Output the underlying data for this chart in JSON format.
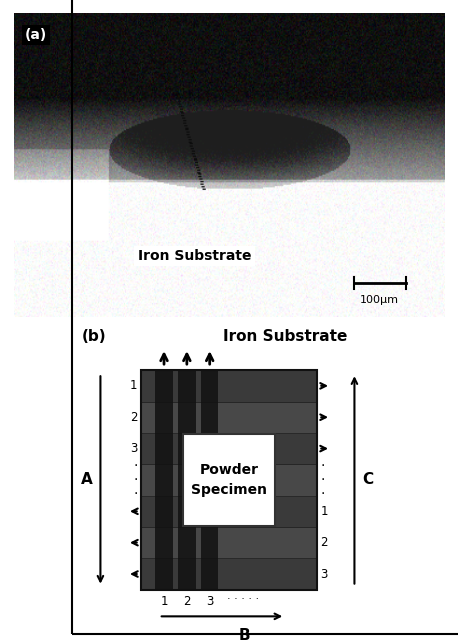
{
  "fig_width": 4.58,
  "fig_height": 6.4,
  "dpi": 100,
  "panel_a_label": "(a)",
  "panel_b_label": "(b)",
  "iron_substrate_label_a": "Iron Substrate",
  "scale_bar_label": "100μm",
  "iron_substrate_label_b": "Iron Substrate",
  "powder_specimen_label": "Powder\nSpecimen",
  "label_A": "A",
  "label_B": "B",
  "label_C": "C",
  "bg_color": "#ffffff",
  "row_numbers_left": [
    "1",
    "2",
    "3"
  ],
  "row_numbers_right": [
    "3",
    "2",
    "1"
  ],
  "col_numbers": [
    "1",
    "2",
    "3"
  ],
  "box_dark": "#2a2a2a",
  "box_mid": "#3d3d3d",
  "box_light_band": "#555555",
  "box_vline": "#1a1a1a",
  "box_vband": "#181818"
}
